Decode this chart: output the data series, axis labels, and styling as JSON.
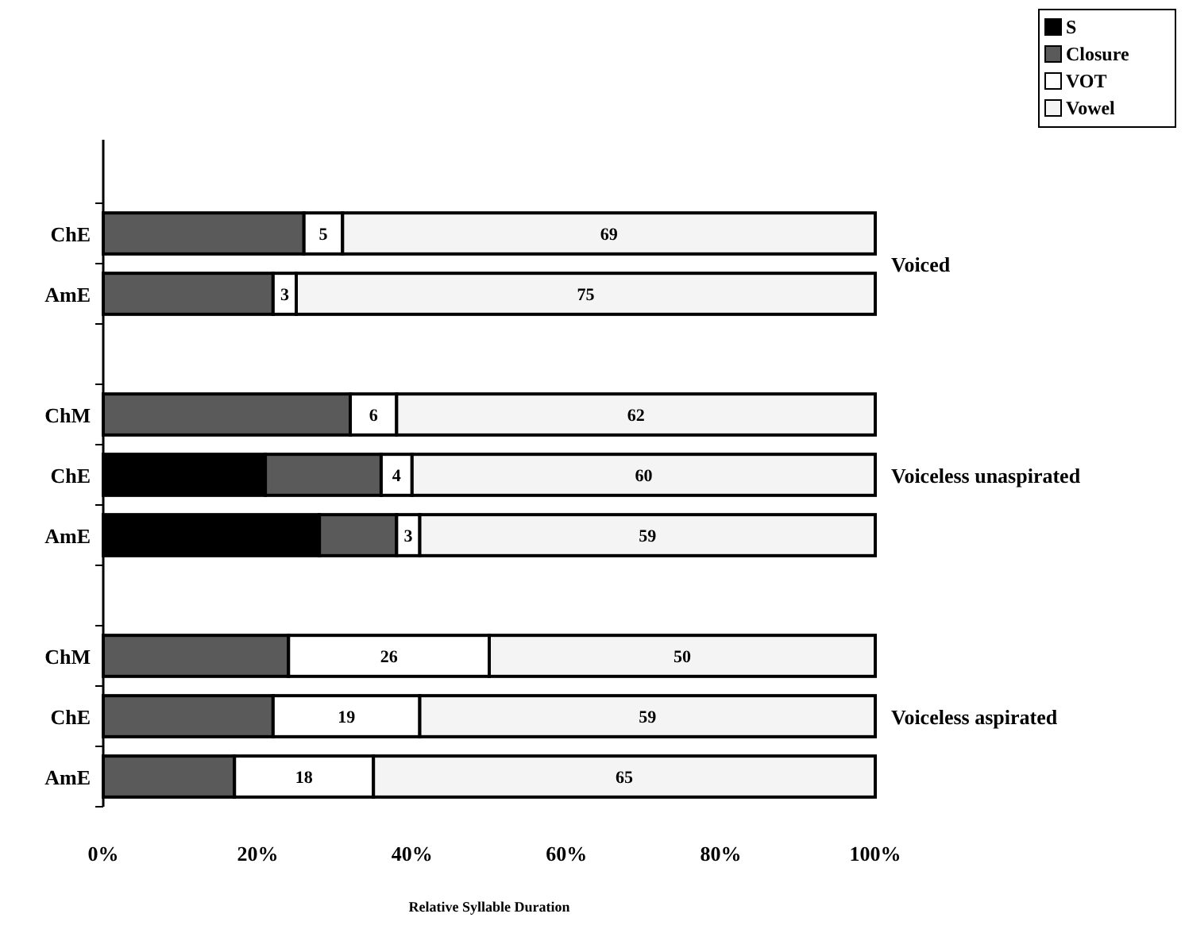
{
  "chart_data": {
    "type": "bar",
    "orientation": "horizontal",
    "stacked": true,
    "xlabel": "Relative Syllable Duration",
    "categories": [
      "ChE",
      "AmE",
      null,
      "ChM",
      "ChE",
      "AmE",
      null,
      "ChM",
      "ChE",
      "AmE"
    ],
    "series": [
      {
        "name": "S",
        "color": "#000000",
        "values": [
          null,
          null,
          null,
          null,
          21,
          28,
          null,
          null,
          null,
          null
        ]
      },
      {
        "name": "Closure",
        "color": "#5a5a5a",
        "values": [
          26,
          22,
          null,
          32,
          15,
          10,
          null,
          24,
          22,
          17
        ]
      },
      {
        "name": "VOT",
        "color": "#ffffff",
        "values": [
          5,
          3,
          null,
          6,
          4,
          3,
          null,
          26,
          19,
          18
        ],
        "value_labels": [
          "5",
          "3",
          null,
          "6",
          "4",
          "3",
          null,
          "26",
          "19",
          "18"
        ]
      },
      {
        "name": "Vowel",
        "color": "#f4f4f4",
        "values": [
          69,
          75,
          null,
          62,
          60,
          59,
          null,
          50,
          59,
          65
        ],
        "value_labels": [
          "69",
          "75",
          null,
          "62",
          "60",
          "59",
          null,
          "50",
          "59",
          "65"
        ]
      }
    ],
    "xlim": [
      0,
      100
    ],
    "xticks": [
      {
        "value": 0,
        "label": "0%"
      },
      {
        "value": 20,
        "label": "20%"
      },
      {
        "value": 40,
        "label": "40%"
      },
      {
        "value": 60,
        "label": "60%"
      },
      {
        "value": 80,
        "label": "80%"
      },
      {
        "value": 100,
        "label": "100%"
      }
    ],
    "annotations": [
      "Voiced",
      "Voiceless unaspirated",
      "Voiceless aspirated"
    ],
    "legend": "top right",
    "grid": false
  }
}
